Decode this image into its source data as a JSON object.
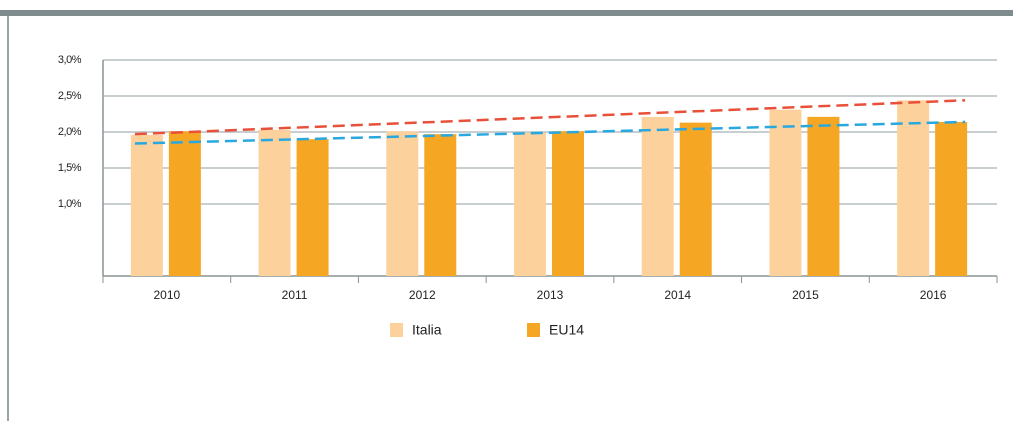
{
  "chart_data": {
    "type": "bar",
    "categories": [
      "2010",
      "2011",
      "2012",
      "2013",
      "2014",
      "2015",
      "2016"
    ],
    "series": [
      {
        "name": "Italia",
        "color": "#fcd19c",
        "values": [
          1.96,
          2.03,
          2.01,
          1.99,
          2.21,
          2.31,
          2.44
        ]
      },
      {
        "name": "EU14",
        "color": "#f5a623",
        "values": [
          2.01,
          1.9,
          1.97,
          2.01,
          2.13,
          2.21,
          2.14
        ]
      }
    ],
    "trendlines": [
      {
        "color": "#e8503a",
        "values": [
          1.97,
          2.44
        ]
      },
      {
        "color": "#29a8e0",
        "values": [
          1.84,
          2.14
        ]
      }
    ],
    "ylim": [
      0,
      3
    ],
    "yticks": [
      {
        "value": 1,
        "label": "1,0%"
      },
      {
        "value": 1.5,
        "label": "1,5%"
      },
      {
        "value": 2,
        "label": "2,0%"
      },
      {
        "value": 2.5,
        "label": "2,5%"
      },
      {
        "value": 3,
        "label": "3,0%"
      }
    ],
    "grid": true
  }
}
